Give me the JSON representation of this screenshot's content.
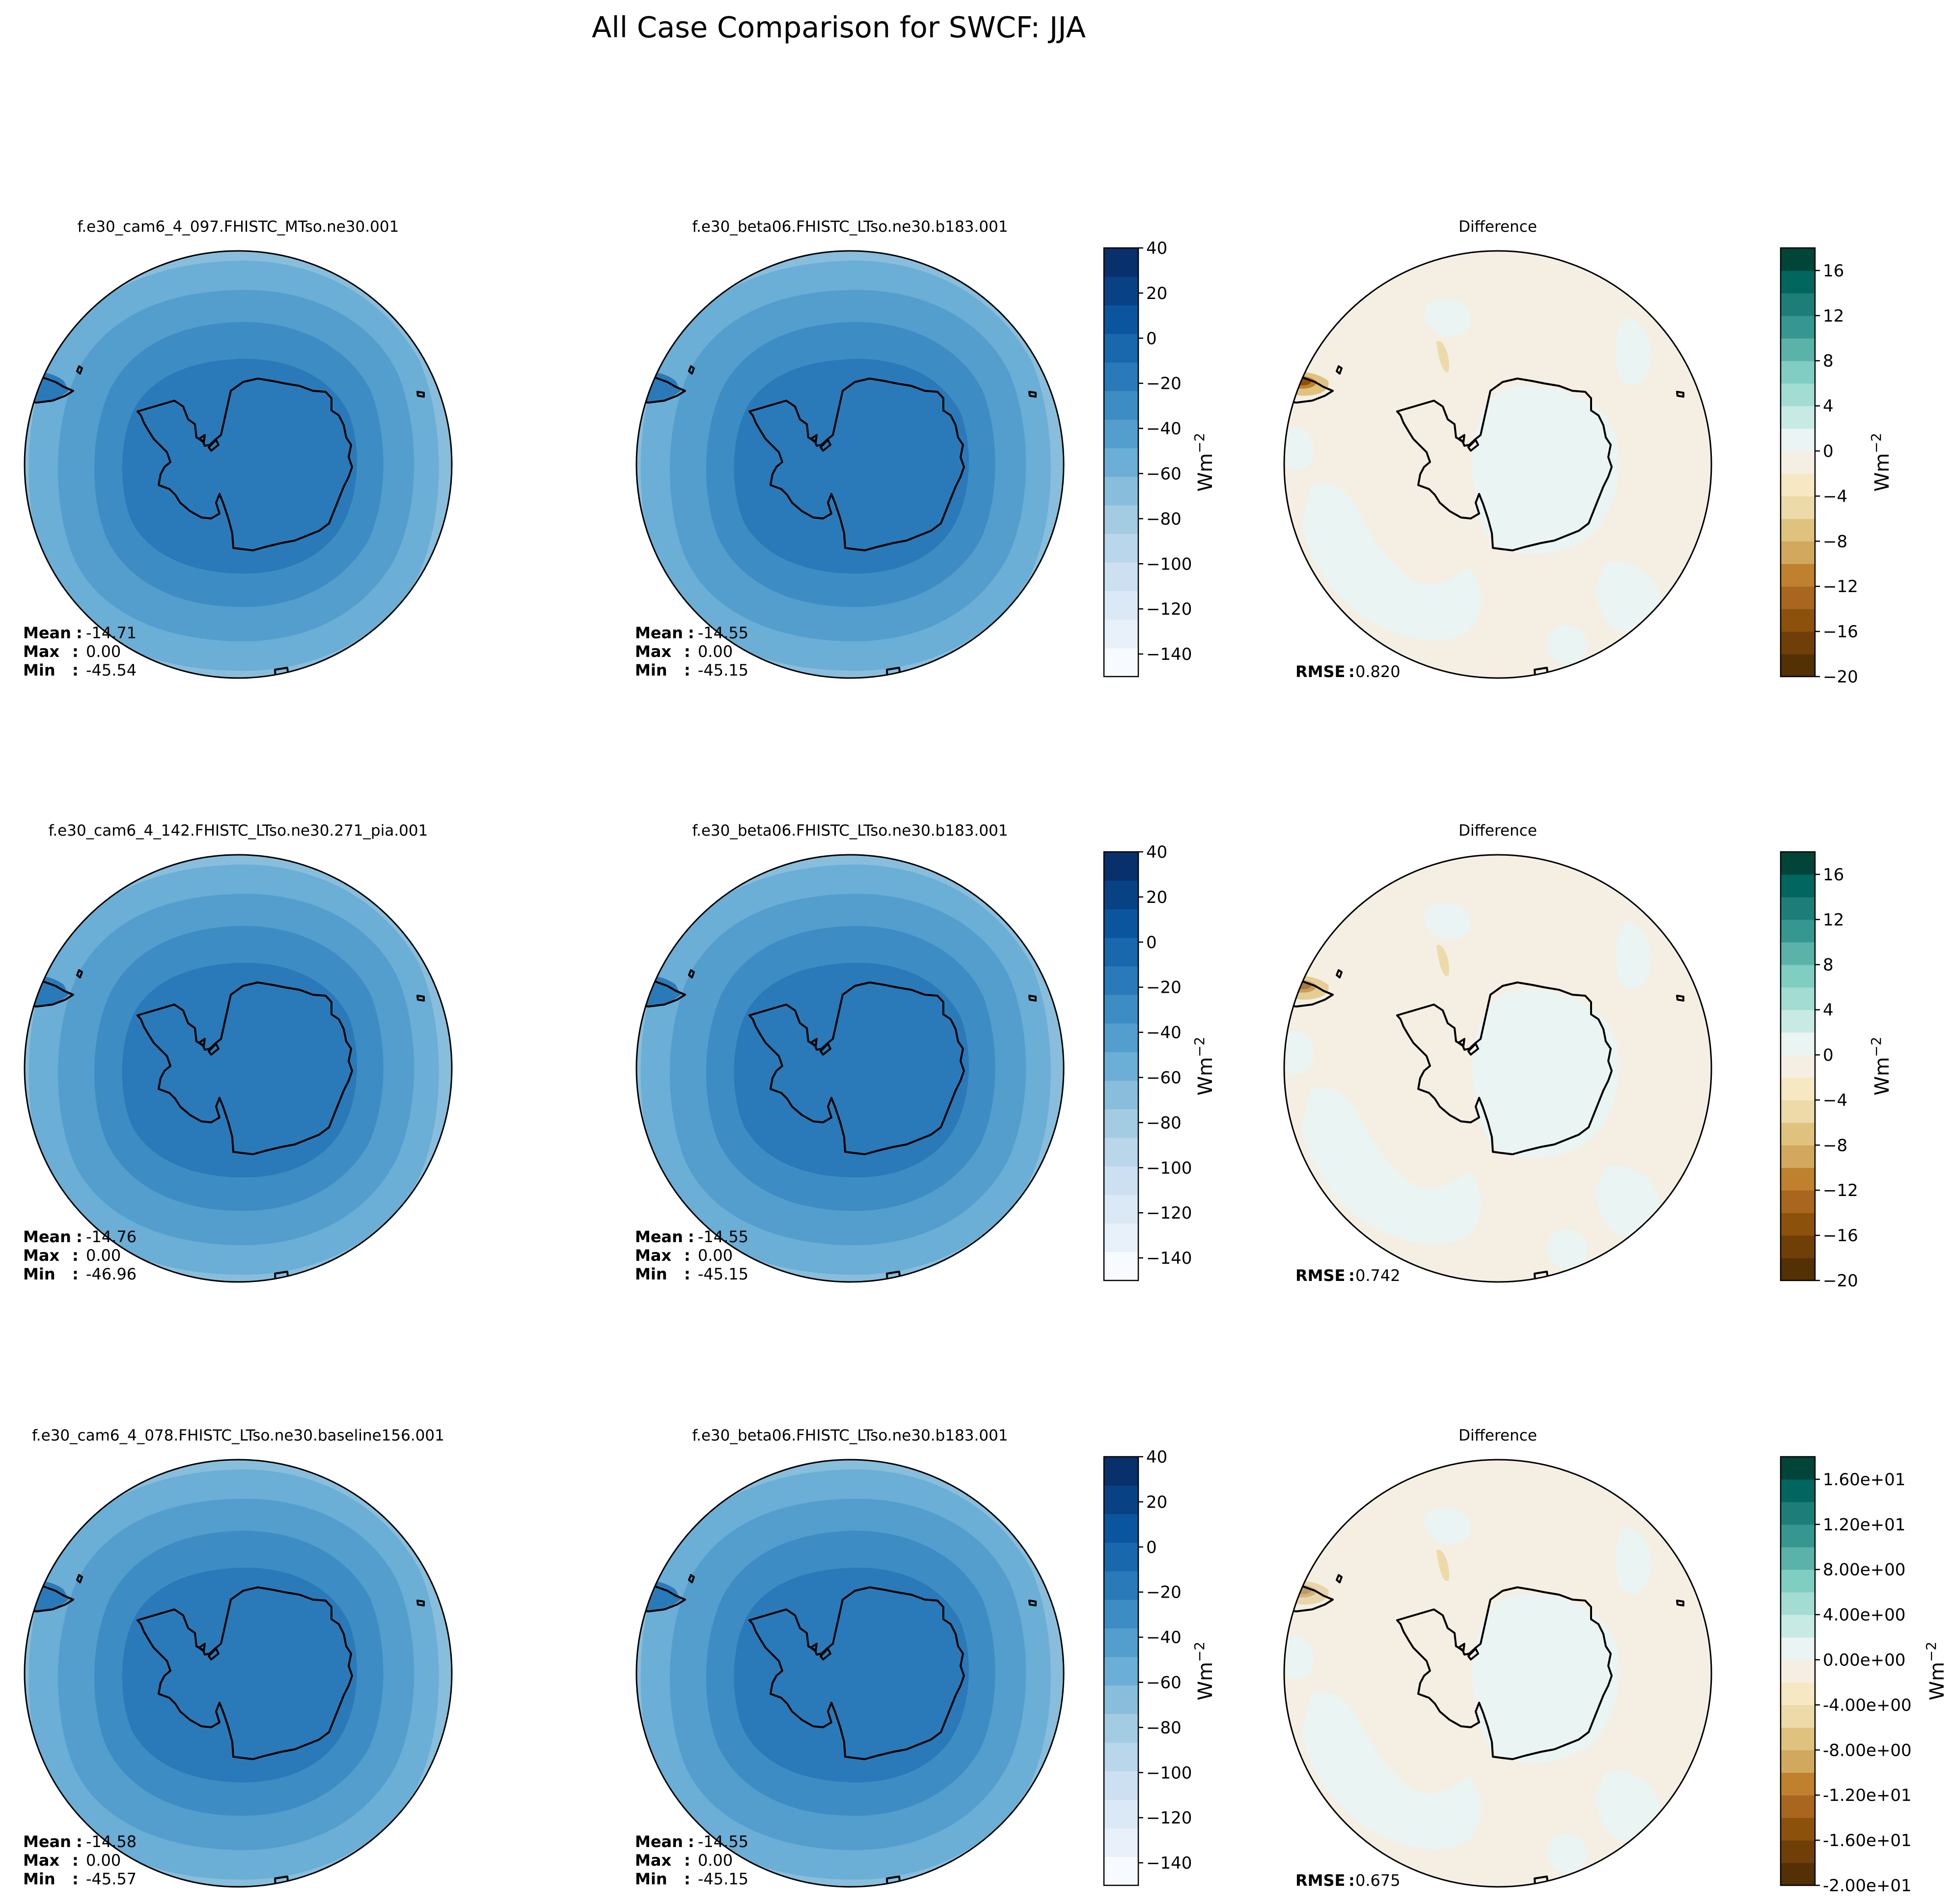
{
  "figure": {
    "title": "All Case Comparison for SWCF: JJA"
  },
  "chart_data": [
    {
      "type": "contour",
      "title": "f.e30_cam6_4_097.FHISTC_MTso.ne30.001",
      "stats": [
        {
          "label": "Mean",
          "value": "-14.71"
        },
        {
          "label": "Max",
          "value": "0.00"
        },
        {
          "label": "Min",
          "value": "-45.54"
        }
      ]
    },
    {
      "type": "contour",
      "title": "f.e30_beta06.FHISTC_LTso.ne30.b183.001",
      "stats": [
        {
          "label": "Mean",
          "value": "-14.55"
        },
        {
          "label": "Max",
          "value": "0.00"
        },
        {
          "label": "Min",
          "value": "-45.15"
        }
      ],
      "colorbar": {
        "label": "Wm",
        "exponent": "−2",
        "range": [
          -150,
          40
        ],
        "ticks": [
          "40",
          "20",
          "0",
          "−20",
          "−40",
          "−60",
          "−80",
          "−100",
          "−120",
          "−140"
        ]
      }
    },
    {
      "type": "contour",
      "title": "Difference",
      "stats": [
        {
          "label": "RMSE",
          "value": "0.820"
        }
      ],
      "colorbar": {
        "label": "Wm",
        "exponent": "−2",
        "range": [
          -20,
          18
        ],
        "ticks": [
          "16",
          "12",
          "8",
          "4",
          "0",
          "−4",
          "−8",
          "−12",
          "−16",
          "−20"
        ]
      }
    },
    {
      "type": "contour",
      "title": "f.e30_cam6_4_142.FHISTC_LTso.ne30.271_pia.001",
      "stats": [
        {
          "label": "Mean",
          "value": "-14.76"
        },
        {
          "label": "Max",
          "value": "0.00"
        },
        {
          "label": "Min",
          "value": "-46.96"
        }
      ]
    },
    {
      "type": "contour",
      "title": "f.e30_beta06.FHISTC_LTso.ne30.b183.001",
      "stats": [
        {
          "label": "Mean",
          "value": "-14.55"
        },
        {
          "label": "Max",
          "value": "0.00"
        },
        {
          "label": "Min",
          "value": "-45.15"
        }
      ],
      "colorbar": {
        "label": "Wm",
        "exponent": "−2",
        "range": [
          -150,
          40
        ],
        "ticks": [
          "40",
          "20",
          "0",
          "−20",
          "−40",
          "−60",
          "−80",
          "−100",
          "−120",
          "−140"
        ]
      }
    },
    {
      "type": "contour",
      "title": "Difference",
      "stats": [
        {
          "label": "RMSE",
          "value": "0.742"
        }
      ],
      "colorbar": {
        "label": "Wm",
        "exponent": "−2",
        "range": [
          -20,
          18
        ],
        "ticks": [
          "16",
          "12",
          "8",
          "4",
          "0",
          "−4",
          "−8",
          "−12",
          "−16",
          "−20"
        ]
      }
    },
    {
      "type": "contour",
      "title": "f.e30_cam6_4_078.FHISTC_LTso.ne30.baseline156.001",
      "stats": [
        {
          "label": "Mean",
          "value": "-14.58"
        },
        {
          "label": "Max",
          "value": "0.00"
        },
        {
          "label": "Min",
          "value": "-45.57"
        }
      ]
    },
    {
      "type": "contour",
      "title": "f.e30_beta06.FHISTC_LTso.ne30.b183.001",
      "stats": [
        {
          "label": "Mean",
          "value": "-14.55"
        },
        {
          "label": "Max",
          "value": "0.00"
        },
        {
          "label": "Min",
          "value": "-45.15"
        }
      ],
      "colorbar": {
        "label": "Wm",
        "exponent": "−2",
        "range": [
          -150,
          40
        ],
        "ticks": [
          "40",
          "20",
          "0",
          "−20",
          "−40",
          "−60",
          "−80",
          "−100",
          "−120",
          "−140"
        ]
      }
    },
    {
      "type": "contour",
      "title": "Difference",
      "stats": [
        {
          "label": "RMSE",
          "value": "0.675"
        }
      ],
      "colorbar": {
        "label": "Wm",
        "exponent": "−2",
        "range": [
          -20,
          18
        ],
        "ticks": [
          "1.60e+01",
          "1.20e+01",
          "8.00e+00",
          "4.00e+00",
          "0.00e+00",
          "-4.00e+00",
          "-8.00e+00",
          "-1.20e+01",
          "-1.60e+01",
          "-2.00e+01"
        ]
      }
    }
  ],
  "colors": {
    "blues": [
      "#f7fbff",
      "#e8f1fa",
      "#dbe9f6",
      "#cde0f2",
      "#bad6eb",
      "#a3cce3",
      "#88bedc",
      "#6baed6",
      "#539ecd",
      "#3d8dc4",
      "#2a7ab9",
      "#1967ad",
      "#0b559f",
      "#084285",
      "#08306b"
    ],
    "brbg": [
      "#543005",
      "#6f3f07",
      "#8c510a",
      "#a9661e",
      "#bf812d",
      "#d1a85e",
      "#dfc27d",
      "#ecdaa9",
      "#f6e8c3",
      "#f4efe2",
      "#eaf4f3",
      "#c7eae5",
      "#a3dcd2",
      "#80cdc1",
      "#5ab2a8",
      "#35978f",
      "#1c7e76",
      "#01665e",
      "#004537"
    ]
  }
}
